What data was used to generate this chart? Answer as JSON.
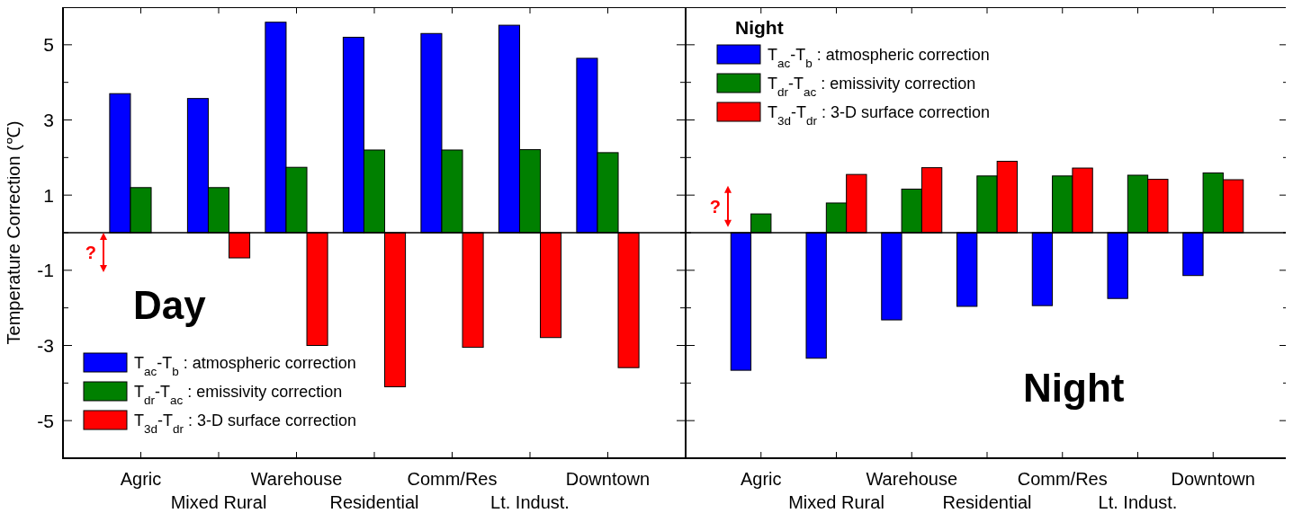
{
  "chart_data": [
    {
      "type": "bar",
      "ylabel": "Temperature Correction (℃)",
      "categories": [
        "Agric",
        "Mixed Rural",
        "Warehouse",
        "Residential",
        "Comm/Res",
        "Lt. Indust.",
        "Downtown"
      ],
      "series": [
        {
          "name": "T$_{ac}$-T$_{b}$ : atmospheric correction",
          "color": "#0000ff",
          "values": [
            3.7,
            3.57,
            5.6,
            5.2,
            5.3,
            5.52,
            4.64
          ]
        },
        {
          "name": "T$_{dr}$-T$_{ac}$ : emissivity correction",
          "color": "#008000",
          "values": [
            1.2,
            1.2,
            1.74,
            2.2,
            2.2,
            2.21,
            2.13
          ]
        },
        {
          "name": "T$_{3d}$-T$_{dr}$ : 3-D surface correction",
          "color": "#ff0000",
          "values": [
            0,
            -0.67,
            -3.0,
            -4.1,
            -3.05,
            -2.79,
            -3.59
          ]
        }
      ],
      "ylim": [
        -6,
        6
      ],
      "yticks": [
        {
          "value": -6,
          "label": null
        },
        -5,
        {
          "value": -4,
          "label": null
        },
        -3,
        {
          "value": -2,
          "label": null
        },
        -1,
        {
          "value": 0,
          "label": null
        },
        1,
        {
          "value": 2,
          "label": null
        },
        3,
        {
          "value": 4,
          "label": null
        },
        5,
        {
          "value": 6,
          "label": null
        }
      ],
      "legend": "bottom left",
      "annotations": [
        "Day",
        "?"
      ]
    },
    {
      "type": "bar",
      "categories": [
        "Agric",
        "Mixed Rural",
        "Warehouse",
        "Residential",
        "Comm/Res",
        "Lt. Indust.",
        "Downtown"
      ],
      "series": [
        {
          "name": "T$_{ac}$-T$_{b}$ : atmospheric correction",
          "color": "#0000ff",
          "values": [
            -3.66,
            -3.34,
            -2.32,
            -1.96,
            -1.94,
            -1.75,
            -1.14
          ]
        },
        {
          "name": "T$_{dr}$-T$_{ac}$ : emissivity correction",
          "color": "#008000",
          "values": [
            0.5,
            0.79,
            1.16,
            1.51,
            1.51,
            1.53,
            1.59
          ]
        },
        {
          "name": "T$_{3d}$-T$_{dr}$ : 3-D surface correction",
          "color": "#ff0000",
          "values": [
            0,
            1.55,
            1.73,
            1.9,
            1.72,
            1.42,
            1.41
          ]
        }
      ],
      "ylim": [
        -6,
        6
      ],
      "yticks": [
        {
          "value": -6,
          "label": null
        },
        -5,
        {
          "value": -4,
          "label": null
        },
        -3,
        {
          "value": -2,
          "label": null
        },
        -1,
        {
          "value": 0,
          "label": null
        },
        1,
        {
          "value": 2,
          "label": null
        },
        3,
        {
          "value": 4,
          "label": null
        },
        5,
        {
          "value": 6,
          "label": null
        }
      ],
      "tick_labels": "x",
      "legend": "top left",
      "legend_title": "Night",
      "annotations": [
        "Night",
        "?"
      ]
    }
  ]
}
